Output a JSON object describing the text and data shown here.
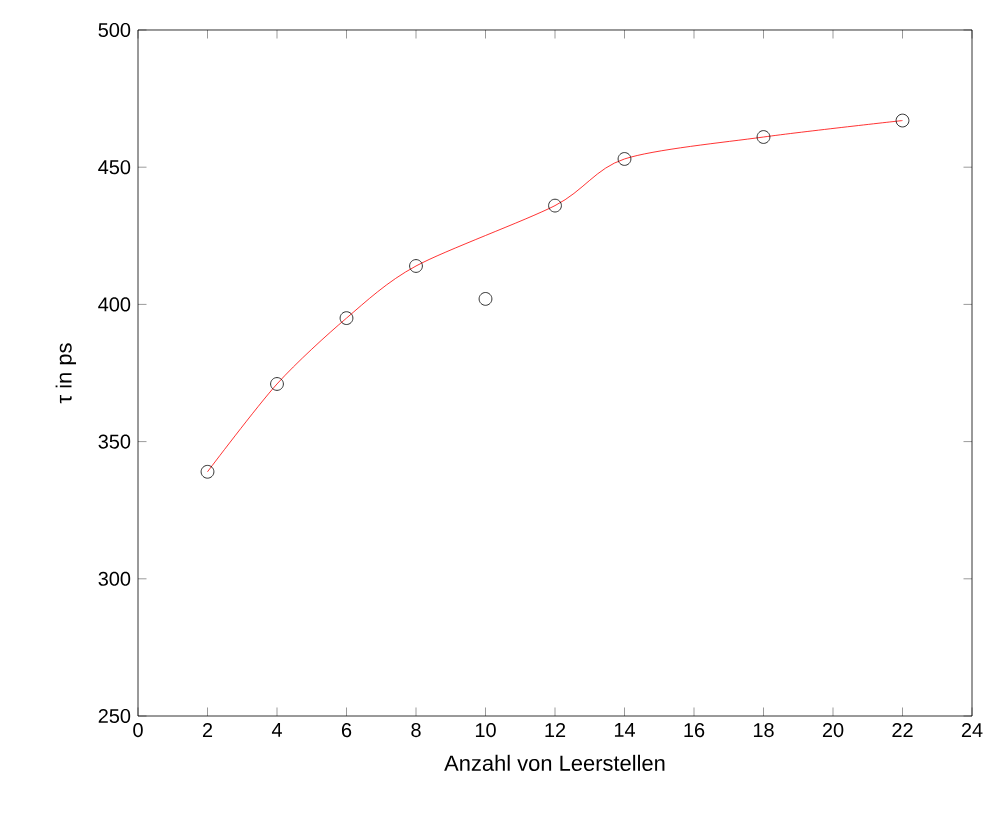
{
  "chart_data": {
    "type": "scatter",
    "xlabel": "Anzahl von Leerstellen",
    "ylabel": "τ in ps",
    "xlim": [
      0,
      24
    ],
    "xticks": [
      0,
      2,
      4,
      6,
      8,
      10,
      12,
      14,
      16,
      18,
      20,
      22,
      24
    ],
    "ylim": [
      250,
      500
    ],
    "yticks": [
      250,
      300,
      350,
      400,
      450,
      500
    ],
    "grid": false,
    "marker": "circle",
    "series": [
      {
        "color": "#000000",
        "x": [
          2,
          4,
          6,
          8,
          10,
          12,
          14,
          18,
          22
        ],
        "values": [
          339,
          371,
          395,
          414,
          402,
          436,
          453,
          461,
          467
        ]
      },
      {
        "type": "line",
        "color": "#ff0000",
        "marker": "none",
        "x": [
          2,
          4,
          6,
          8,
          12,
          14,
          18,
          22
        ],
        "values": [
          339,
          371,
          395,
          414,
          436,
          453,
          461,
          467
        ]
      }
    ]
  }
}
